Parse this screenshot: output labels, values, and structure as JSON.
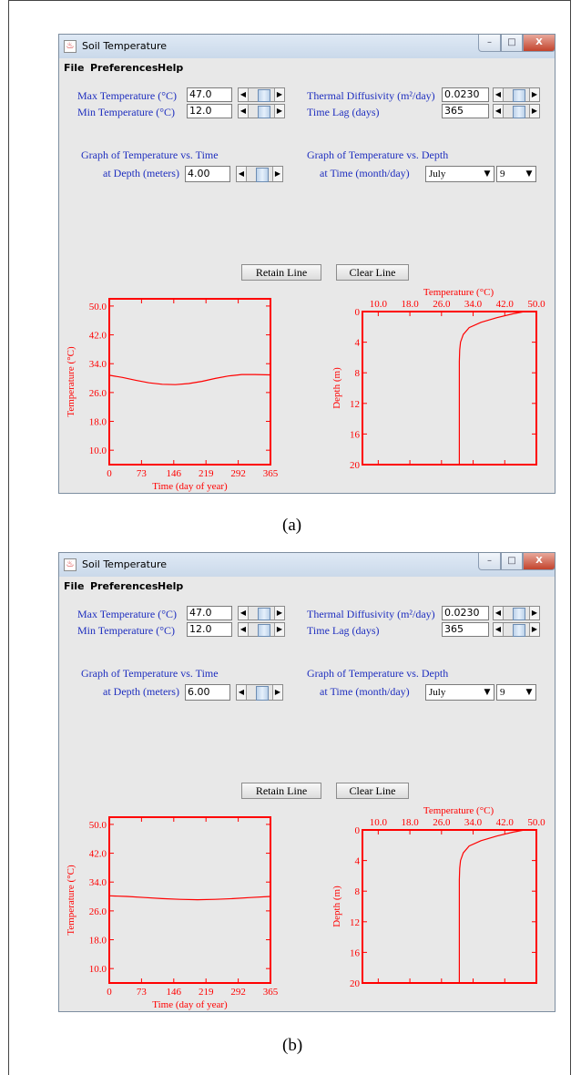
{
  "panels": [
    {
      "caption": "(a)",
      "window": {
        "title": "Soil Temperature",
        "min_glyph": "–",
        "max_glyph": "□",
        "close_glyph": "X"
      },
      "menu": [
        "File",
        "Preferences",
        "Help"
      ],
      "controls": {
        "max_temp_label": "Max Temperature (°C)",
        "max_temp_value": "47.0",
        "min_temp_label": "Min Temperature (°C)",
        "min_temp_value": "12.0",
        "thermal_label": "Thermal Diffusivity (m²/day)",
        "thermal_value": "0.0230",
        "time_lag_label": "Time Lag (days)",
        "time_lag_value": "365",
        "graph_time_title": "Graph of Temperature vs. Time",
        "depth_label": "at Depth (meters)",
        "depth_value": "4.00",
        "graph_depth_title": "Graph of Temperature vs. Depth",
        "time_label": "at Time (month/day)",
        "month": "July",
        "day": "9"
      },
      "buttons": {
        "retain": "Retain Line",
        "clear": "Clear Line"
      },
      "chart_data": [
        {
          "type": "line",
          "xlabel": "Time (day of year)",
          "ylabel": "Temperature (°C)",
          "xlim": [
            0,
            365
          ],
          "ylim": [
            6,
            52
          ],
          "xticks": [
            "0",
            "73",
            "146",
            "219",
            "292",
            "365"
          ],
          "yticks": [
            "10.0",
            "18.0",
            "26.0",
            "34.0",
            "42.0",
            "50.0"
          ],
          "color": "#ff0000",
          "x": [
            0,
            30,
            60,
            90,
            120,
            150,
            180,
            210,
            240,
            270,
            300,
            330,
            365
          ],
          "y": [
            30.8,
            30.2,
            29.4,
            28.7,
            28.3,
            28.2,
            28.5,
            29.1,
            29.9,
            30.6,
            31.0,
            31.0,
            30.9
          ]
        },
        {
          "type": "line",
          "title": "Temperature (°C)",
          "ylabel": "Depth (m)",
          "xlim": [
            6,
            50
          ],
          "ylim": [
            0,
            20
          ],
          "y_inverted": true,
          "xticks": [
            "10.0",
            "18.0",
            "26.0",
            "34.0",
            "42.0",
            "50.0"
          ],
          "yticks": [
            "0",
            "4",
            "8",
            "12",
            "16",
            "20"
          ],
          "color": "#ff0000",
          "x": [
            47.0,
            44.0,
            40.0,
            36.0,
            33.0,
            31.5,
            30.8,
            30.6,
            30.5,
            30.5,
            30.5,
            30.5
          ],
          "y": [
            0,
            0.3,
            0.8,
            1.4,
            2.1,
            3.0,
            4.0,
            5.0,
            6.5,
            8.0,
            12.0,
            20.0
          ]
        }
      ]
    },
    {
      "caption": "(b)",
      "window": {
        "title": "Soil Temperature",
        "min_glyph": "–",
        "max_glyph": "□",
        "close_glyph": "X"
      },
      "menu": [
        "File",
        "Preferences",
        "Help"
      ],
      "controls": {
        "max_temp_label": "Max Temperature (°C)",
        "max_temp_value": "47.0",
        "min_temp_label": "Min Temperature (°C)",
        "min_temp_value": "12.0",
        "thermal_label": "Thermal Diffusivity (m²/day)",
        "thermal_value": "0.0230",
        "time_lag_label": "Time Lag (days)",
        "time_lag_value": "365",
        "graph_time_title": "Graph of Temperature vs. Time",
        "depth_label": "at Depth (meters)",
        "depth_value": "6.00",
        "graph_depth_title": "Graph of Temperature vs. Depth",
        "time_label": "at Time (month/day)",
        "month": "July",
        "day": "9"
      },
      "buttons": {
        "retain": "Retain Line",
        "clear": "Clear Line"
      },
      "chart_data": [
        {
          "type": "line",
          "xlabel": "Time (day of year)",
          "ylabel": "Temperature (°C)",
          "xlim": [
            0,
            365
          ],
          "ylim": [
            6,
            52
          ],
          "xticks": [
            "0",
            "73",
            "146",
            "219",
            "292",
            "365"
          ],
          "yticks": [
            "10.0",
            "18.0",
            "26.0",
            "34.0",
            "42.0",
            "50.0"
          ],
          "color": "#ff0000",
          "x": [
            0,
            40,
            80,
            120,
            160,
            200,
            240,
            280,
            320,
            365
          ],
          "y": [
            30.2,
            30.0,
            29.7,
            29.4,
            29.2,
            29.1,
            29.2,
            29.4,
            29.7,
            30.0
          ]
        },
        {
          "type": "line",
          "title": "Temperature (°C)",
          "ylabel": "Depth (m)",
          "xlim": [
            6,
            50
          ],
          "ylim": [
            0,
            20
          ],
          "y_inverted": true,
          "xticks": [
            "10.0",
            "18.0",
            "26.0",
            "34.0",
            "42.0",
            "50.0"
          ],
          "yticks": [
            "0",
            "4",
            "8",
            "12",
            "16",
            "20"
          ],
          "color": "#ff0000",
          "x": [
            47.0,
            44.0,
            40.0,
            36.0,
            33.0,
            31.5,
            30.8,
            30.6,
            30.5,
            30.5,
            30.5,
            30.5
          ],
          "y": [
            0,
            0.3,
            0.8,
            1.4,
            2.1,
            3.0,
            4.0,
            5.0,
            6.5,
            8.0,
            12.0,
            20.0
          ]
        }
      ]
    }
  ]
}
